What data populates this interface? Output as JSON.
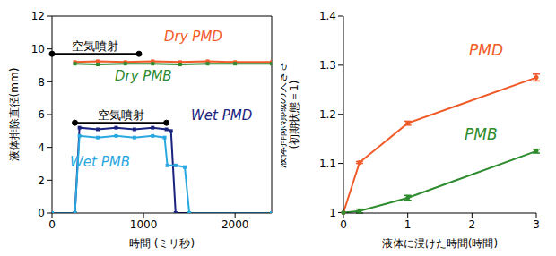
{
  "chart_data": [
    {
      "type": "line",
      "xlabel": "時間 (ミリ秒)",
      "ylabel": "液体排除直径(mm)",
      "xlim": [
        0,
        2400
      ],
      "xticks": [
        0,
        1000,
        2000
      ],
      "ylim": [
        0,
        12
      ],
      "yticks": [
        0,
        2,
        4,
        6,
        8,
        10,
        12
      ],
      "annotations": [
        {
          "text": "空気噴射",
          "x": [
            0,
            950
          ],
          "y": 9.7
        },
        {
          "text": "空気噴射",
          "x": [
            250,
            1250
          ],
          "y": 5.5
        }
      ],
      "series": [
        {
          "name": "Dry PMD",
          "color": "#f05a28",
          "marker": "square",
          "x": [
            250,
            500,
            800,
            1100,
            1400,
            1700,
            2000,
            2400
          ],
          "values": [
            9.2,
            9.25,
            9.2,
            9.25,
            9.2,
            9.25,
            9.2,
            9.2
          ]
        },
        {
          "name": "Dry PMB",
          "color": "#2e8b2e",
          "marker": "square",
          "x": [
            250,
            500,
            800,
            1100,
            1400,
            1700,
            2000,
            2400
          ],
          "values": [
            9.1,
            9.05,
            9.1,
            9.1,
            9.05,
            9.1,
            9.1,
            9.1
          ]
        },
        {
          "name": "Wet PMD",
          "color": "#1a237e",
          "marker": "square",
          "x": [
            0,
            250,
            300,
            500,
            700,
            900,
            1100,
            1250,
            1300,
            1350,
            2400
          ],
          "values": [
            0,
            0,
            5.2,
            5.1,
            5.2,
            5.1,
            5.2,
            5.1,
            5.0,
            0,
            0
          ]
        },
        {
          "name": "Wet PMB",
          "color": "#29a8e0",
          "marker": "square",
          "x": [
            0,
            250,
            300,
            500,
            700,
            900,
            1100,
            1230,
            1260,
            1350,
            1450,
            1500,
            2400
          ],
          "values": [
            0,
            0,
            4.7,
            4.6,
            4.7,
            4.6,
            4.7,
            4.6,
            2.9,
            2.9,
            2.8,
            0,
            0
          ]
        }
      ]
    },
    {
      "type": "line",
      "xlabel": "液体に浸けた時間(時間)",
      "ylabel": "液体排除領域の大きさ\n(初期状態＝1)",
      "xlim": [
        0,
        3
      ],
      "xticks": [
        0,
        1,
        2,
        3
      ],
      "ylim": [
        1,
        1.4
      ],
      "yticks": [
        1,
        1.1,
        1.2,
        1.3,
        1.4
      ],
      "series": [
        {
          "name": "PMD",
          "color": "#f05a28",
          "marker": "circle",
          "x": [
            0,
            0.25,
            1,
            3
          ],
          "values": [
            1,
            1.102,
            1.182,
            1.275
          ],
          "errors": [
            0,
            0.002,
            0.004,
            0.007
          ]
        },
        {
          "name": "PMB",
          "color": "#2e8b2e",
          "marker": "circle",
          "x": [
            0,
            0.25,
            1,
            3
          ],
          "values": [
            1,
            1.003,
            1.03,
            1.125
          ],
          "errors": [
            0,
            0.004,
            0.005,
            0.004
          ]
        }
      ]
    }
  ]
}
